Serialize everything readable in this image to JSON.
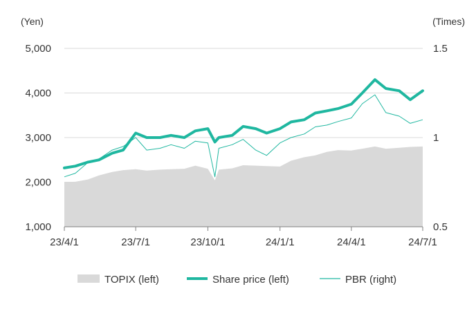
{
  "chart_data": {
    "type": "line",
    "left_unit": "(Yen)",
    "right_unit": "(Times)",
    "left_axis": {
      "min": 1000,
      "max": 5000,
      "ticks": [
        "1,000",
        "2,000",
        "3,000",
        "4,000",
        "5,000"
      ],
      "tick_values": [
        1000,
        2000,
        3000,
        4000,
        5000
      ]
    },
    "right_axis": {
      "min": 0.5,
      "max": 1.5,
      "ticks": [
        "0.5",
        "1",
        "1.5"
      ],
      "tick_values": [
        0.5,
        1.0,
        1.5
      ]
    },
    "x_ticks": [
      "23/4/1",
      "23/7/1",
      "23/10/1",
      "24/1/1",
      "24/4/1",
      "24/7/1"
    ],
    "x_tick_dates": [
      "2023-04-01",
      "2023-07-01",
      "2023-10-01",
      "2024-01-01",
      "2024-04-01",
      "2024-07-01"
    ],
    "gridlines": true,
    "legend_position": "bottom",
    "colors": {
      "topix": "#d9d9d9",
      "share_price": "#1fb7a0",
      "pbr": "#1fb7a0",
      "grid": "#d9d9d9",
      "axis": "#7f7f7f"
    },
    "series": [
      {
        "name": "TOPIX (left)",
        "kind": "area",
        "axis": "left",
        "x": [
          "2023-04-01",
          "2023-04-15",
          "2023-05-01",
          "2023-05-15",
          "2023-06-01",
          "2023-06-15",
          "2023-07-01",
          "2023-07-15",
          "2023-08-01",
          "2023-08-15",
          "2023-09-01",
          "2023-09-15",
          "2023-10-01",
          "2023-10-10",
          "2023-10-15",
          "2023-11-01",
          "2023-11-15",
          "2023-12-01",
          "2023-12-15",
          "2024-01-01",
          "2024-01-15",
          "2024-02-01",
          "2024-02-15",
          "2024-03-01",
          "2024-03-15",
          "2024-04-01",
          "2024-04-15",
          "2024-05-01",
          "2024-05-15",
          "2024-06-01",
          "2024-06-15",
          "2024-07-01"
        ],
        "y": [
          2000,
          2010,
          2060,
          2150,
          2230,
          2270,
          2290,
          2260,
          2280,
          2290,
          2300,
          2370,
          2300,
          2040,
          2280,
          2310,
          2380,
          2370,
          2360,
          2350,
          2480,
          2560,
          2600,
          2680,
          2720,
          2710,
          2750,
          2800,
          2750,
          2770,
          2790,
          2800
        ]
      },
      {
        "name": "Share price (left)",
        "kind": "line",
        "axis": "left",
        "x": [
          "2023-04-01",
          "2023-04-15",
          "2023-05-01",
          "2023-05-15",
          "2023-06-01",
          "2023-06-15",
          "2023-07-01",
          "2023-07-15",
          "2023-08-01",
          "2023-08-15",
          "2023-09-01",
          "2023-09-15",
          "2023-10-01",
          "2023-10-10",
          "2023-10-15",
          "2023-11-01",
          "2023-11-15",
          "2023-12-01",
          "2023-12-15",
          "2024-01-01",
          "2024-01-15",
          "2024-02-01",
          "2024-02-15",
          "2024-03-01",
          "2024-03-15",
          "2024-04-01",
          "2024-04-15",
          "2024-05-01",
          "2024-05-15",
          "2024-06-01",
          "2024-06-15",
          "2024-07-01"
        ],
        "y": [
          2320,
          2360,
          2450,
          2500,
          2650,
          2720,
          3100,
          3000,
          3000,
          3050,
          3000,
          3150,
          3200,
          2900,
          3000,
          3050,
          3250,
          3200,
          3100,
          3200,
          3350,
          3400,
          3550,
          3600,
          3650,
          3750,
          4000,
          4300,
          4100,
          4050,
          3850,
          4050
        ]
      },
      {
        "name": "PBR (right)",
        "kind": "line",
        "axis": "right",
        "x": [
          "2023-04-01",
          "2023-04-15",
          "2023-05-01",
          "2023-05-15",
          "2023-06-01",
          "2023-06-15",
          "2023-07-01",
          "2023-07-15",
          "2023-08-01",
          "2023-08-15",
          "2023-09-01",
          "2023-09-15",
          "2023-10-01",
          "2023-10-10",
          "2023-10-15",
          "2023-11-01",
          "2023-11-15",
          "2023-12-01",
          "2023-12-15",
          "2024-01-01",
          "2024-01-15",
          "2024-02-01",
          "2024-02-15",
          "2024-03-01",
          "2024-03-15",
          "2024-04-01",
          "2024-04-15",
          "2024-05-01",
          "2024-05-15",
          "2024-06-01",
          "2024-06-15",
          "2024-07-01"
        ],
        "y": [
          0.78,
          0.8,
          0.86,
          0.88,
          0.93,
          0.95,
          1.0,
          0.93,
          0.94,
          0.96,
          0.94,
          0.98,
          0.97,
          0.78,
          0.94,
          0.96,
          0.99,
          0.93,
          0.9,
          0.97,
          1.0,
          1.02,
          1.06,
          1.07,
          1.09,
          1.11,
          1.19,
          1.24,
          1.14,
          1.12,
          1.08,
          1.1
        ]
      }
    ]
  }
}
